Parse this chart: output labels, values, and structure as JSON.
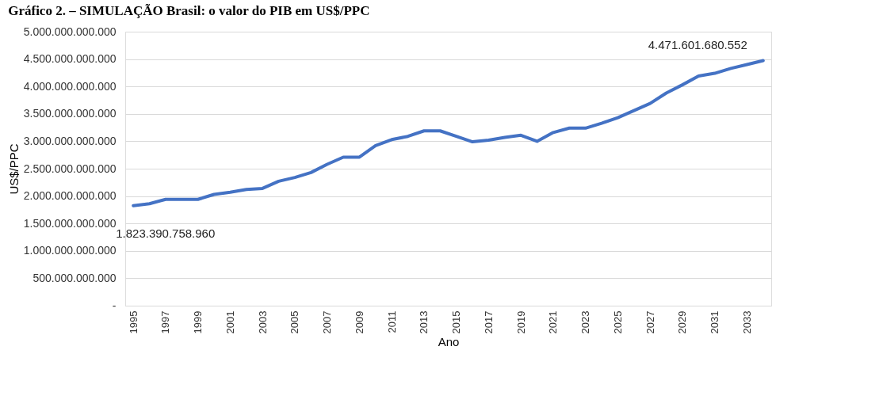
{
  "chart_data": {
    "type": "line",
    "title": "Gráfico 2. – SIMULAÇÃO Brasil: o valor do PIB em US$/PPC",
    "xlabel": "Ano",
    "ylabel": "US$/PPC",
    "categories": [
      "1995",
      null,
      "1997",
      null,
      "1999",
      null,
      "2001",
      null,
      "2003",
      null,
      "2005",
      null,
      "2007",
      null,
      "2009",
      null,
      "2011",
      null,
      "2013",
      null,
      "2015",
      null,
      "2017",
      null,
      "2019",
      null,
      "2021",
      null,
      "2023",
      null,
      "2025",
      null,
      "2027",
      null,
      "2029",
      null,
      "2031",
      null,
      "2033",
      null
    ],
    "series": [
      {
        "color": "#4472c4",
        "values": [
          1823390758960,
          1860000000000,
          1940000000000,
          1940000000000,
          1940000000000,
          2030000000000,
          2070000000000,
          2120000000000,
          2140000000000,
          2270000000000,
          2340000000000,
          2430000000000,
          2580000000000,
          2710000000000,
          2710000000000,
          2920000000000,
          3030000000000,
          3090000000000,
          3190000000000,
          3190000000000,
          3090000000000,
          2990000000000,
          3020000000000,
          3070000000000,
          3110000000000,
          3000000000000,
          3160000000000,
          3240000000000,
          3240000000000,
          3330000000000,
          3430000000000,
          3560000000000,
          3690000000000,
          3880000000000,
          4030000000000,
          4190000000000,
          4240000000000,
          4330000000000,
          4400000000000,
          4471601680552
        ],
        "value_labels": [
          "1.823.390.758.960",
          null,
          null,
          null,
          null,
          null,
          null,
          null,
          null,
          null,
          null,
          null,
          null,
          null,
          null,
          null,
          null,
          null,
          null,
          null,
          null,
          null,
          null,
          null,
          null,
          null,
          null,
          null,
          null,
          null,
          null,
          null,
          null,
          null,
          null,
          null,
          null,
          null,
          null,
          "4.471.601.680.552"
        ]
      }
    ],
    "ylim": [
      0,
      5000000000000
    ],
    "yticks": [
      {
        "value": 0,
        "label": "-"
      },
      {
        "value": 500000000000,
        "label": "500.000.000.000"
      },
      {
        "value": 1000000000000,
        "label": "1.000.000.000.000"
      },
      {
        "value": 1500000000000,
        "label": "1.500.000.000.000"
      },
      {
        "value": 2000000000000,
        "label": "2.000.000.000.000"
      },
      {
        "value": 2500000000000,
        "label": "2.500.000.000.000"
      },
      {
        "value": 3000000000000,
        "label": "3.000.000.000.000"
      },
      {
        "value": 3500000000000,
        "label": "3.500.000.000.000"
      },
      {
        "value": 4000000000000,
        "label": "4.000.000.000.000"
      },
      {
        "value": 4500000000000,
        "label": "4.500.000.000.000"
      },
      {
        "value": 5000000000000,
        "label": "5.000.000.000.000"
      }
    ],
    "grid": "y",
    "marker": "none",
    "line_style": "solid"
  }
}
